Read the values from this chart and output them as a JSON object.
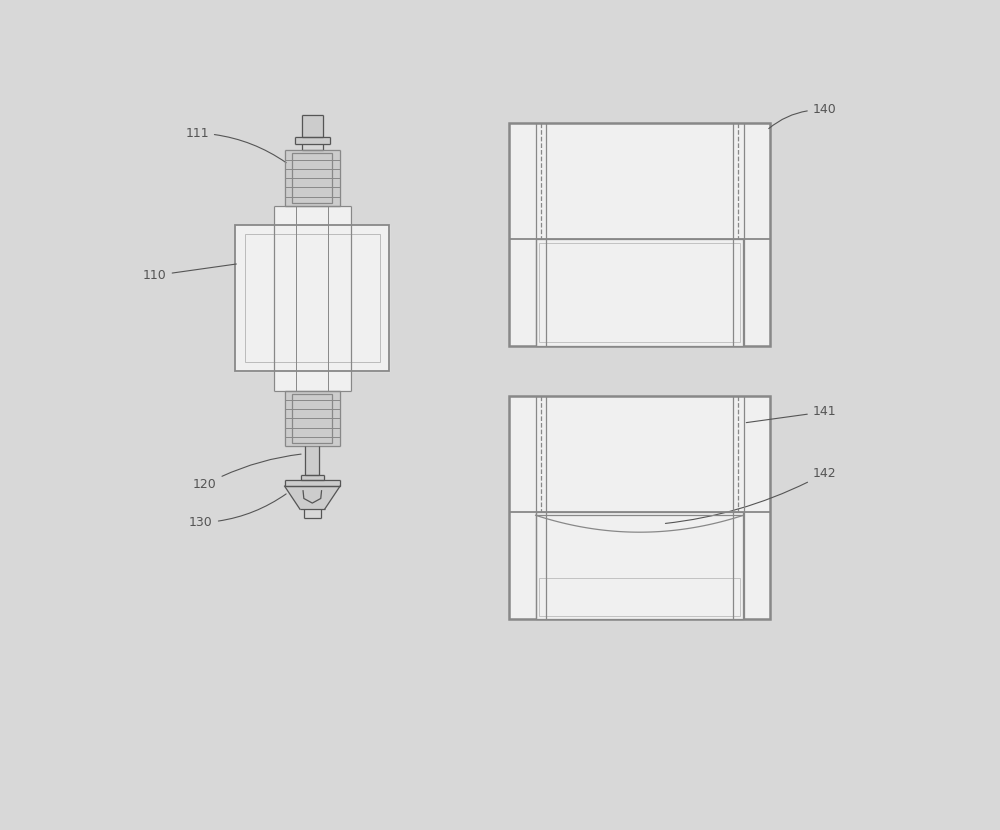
{
  "bg_color": "#d8d8d8",
  "line_color": "#555555",
  "dark_gray": "#888888",
  "light_gray": "#bbbbbb",
  "lighter_gray": "#cccccc",
  "mid_gray": "#999999",
  "white": "#f0f0f0",
  "label_111": "111",
  "label_110": "110",
  "label_120": "120",
  "label_130": "130",
  "label_140": "140",
  "label_141": "141",
  "label_142": "142"
}
